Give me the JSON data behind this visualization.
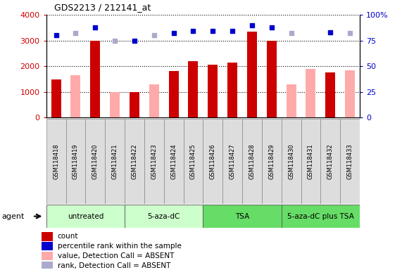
{
  "title": "GDS2213 / 212141_at",
  "samples": [
    "GSM118418",
    "GSM118419",
    "GSM118420",
    "GSM118421",
    "GSM118422",
    "GSM118423",
    "GSM118424",
    "GSM118425",
    "GSM118426",
    "GSM118427",
    "GSM118428",
    "GSM118429",
    "GSM118430",
    "GSM118431",
    "GSM118432",
    "GSM118433"
  ],
  "count_values": [
    1480,
    null,
    3000,
    null,
    1000,
    null,
    1800,
    2200,
    2050,
    2150,
    3350,
    3000,
    null,
    null,
    1750,
    null
  ],
  "absent_values": [
    null,
    1650,
    null,
    1000,
    null,
    1300,
    null,
    null,
    null,
    null,
    null,
    null,
    1300,
    1900,
    null,
    1850
  ],
  "rank_present": [
    80,
    null,
    88,
    null,
    75,
    null,
    82,
    84,
    84,
    84,
    90,
    88,
    null,
    null,
    83,
    null
  ],
  "rank_absent": [
    null,
    82,
    null,
    75,
    null,
    80,
    null,
    null,
    null,
    null,
    null,
    null,
    82,
    null,
    null,
    82
  ],
  "ylim_left": [
    0,
    4000
  ],
  "ylim_right": [
    0,
    100
  ],
  "yticks_left": [
    0,
    1000,
    2000,
    3000,
    4000
  ],
  "yticks_right": [
    0,
    25,
    50,
    75,
    100
  ],
  "groups": [
    {
      "label": "untreated",
      "start": 0,
      "end": 3,
      "color": "#ccffcc"
    },
    {
      "label": "5-aza-dC",
      "start": 4,
      "end": 7,
      "color": "#ccffcc"
    },
    {
      "label": "TSA",
      "start": 8,
      "end": 11,
      "color": "#66dd66"
    },
    {
      "label": "5-aza-dC plus TSA",
      "start": 12,
      "end": 15,
      "color": "#66dd66"
    }
  ],
  "bar_width": 0.5,
  "count_color": "#cc0000",
  "absent_bar_color": "#ffaaaa",
  "rank_present_color": "#0000cc",
  "rank_absent_color": "#aaaacc",
  "bg_color": "#ffffff",
  "plot_bg_color": "#ffffff",
  "ylabel_left_color": "#cc0000",
  "ylabel_right_color": "#0000cc",
  "sample_box_color": "#dddddd",
  "legend_items": [
    {
      "label": "count",
      "color": "#cc0000"
    },
    {
      "label": "percentile rank within the sample",
      "color": "#0000cc"
    },
    {
      "label": "value, Detection Call = ABSENT",
      "color": "#ffaaaa"
    },
    {
      "label": "rank, Detection Call = ABSENT",
      "color": "#aaaacc"
    }
  ]
}
